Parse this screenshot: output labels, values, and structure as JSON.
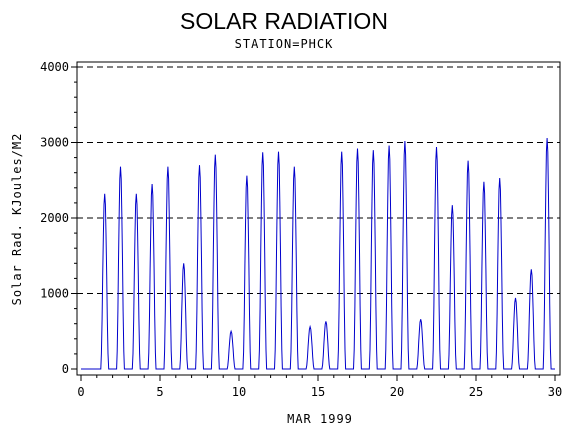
{
  "chart_data": {
    "type": "line",
    "title": "SOLAR RADIATION",
    "subtitle": "STATION=PHCK",
    "xlabel": "MAR 1999",
    "ylabel": "Solar Rad. KJoules/M2",
    "xlim": [
      0,
      30
    ],
    "ylim": [
      0,
      4000
    ],
    "xticks": [
      0,
      5,
      10,
      15,
      20,
      25,
      30
    ],
    "yticks": [
      0,
      1000,
      2000,
      3000,
      4000
    ],
    "grid": "horizontal-dashed",
    "series_color": "#0000cc",
    "daily_peaks": [
      {
        "day": 1,
        "peak": 2320
      },
      {
        "day": 2,
        "peak": 2680
      },
      {
        "day": 3,
        "peak": 2320
      },
      {
        "day": 4,
        "peak": 2450
      },
      {
        "day": 5,
        "peak": 2680
      },
      {
        "day": 6,
        "peak": 1400
      },
      {
        "day": 7,
        "peak": 2700
      },
      {
        "day": 8,
        "peak": 2840
      },
      {
        "day": 9,
        "peak": 500
      },
      {
        "day": 10,
        "peak": 2560
      },
      {
        "day": 11,
        "peak": 2870
      },
      {
        "day": 12,
        "peak": 2880
      },
      {
        "day": 13,
        "peak": 2680
      },
      {
        "day": 14,
        "peak": 560
      },
      {
        "day": 15,
        "peak": 630
      },
      {
        "day": 16,
        "peak": 2880
      },
      {
        "day": 17,
        "peak": 2920
      },
      {
        "day": 18,
        "peak": 2900
      },
      {
        "day": 19,
        "peak": 2960
      },
      {
        "day": 20,
        "peak": 3020
      },
      {
        "day": 21,
        "peak": 660
      },
      {
        "day": 22,
        "peak": 2940
      },
      {
        "day": 23,
        "peak": 2170
      },
      {
        "day": 24,
        "peak": 2760
      },
      {
        "day": 25,
        "peak": 2480
      },
      {
        "day": 26,
        "peak": 2530
      },
      {
        "day": 27,
        "peak": 940
      },
      {
        "day": 28,
        "peak": 1320
      },
      {
        "day": 29,
        "peak": 3060
      }
    ]
  }
}
